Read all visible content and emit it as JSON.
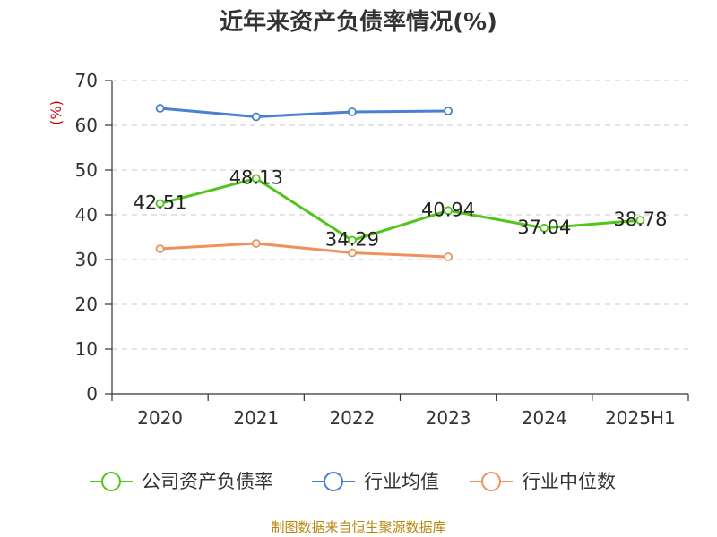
{
  "chart_data": {
    "type": "line",
    "title": "近年来资产负债率情况(%)",
    "ylabel": "(%)",
    "xlabel": "",
    "ylim": [
      0,
      70
    ],
    "yticks": [
      0,
      10,
      20,
      30,
      40,
      50,
      60,
      70
    ],
    "grid": true,
    "legend_position": "bottom",
    "categories": [
      "2020",
      "2021",
      "2022",
      "2023",
      "2024",
      "2025H1"
    ],
    "series": [
      {
        "name": "公司资产负债率",
        "color": "#52c41a",
        "values": [
          42.51,
          48.13,
          34.29,
          40.94,
          37.04,
          38.78
        ],
        "labels": [
          "42.51",
          "48.13",
          "34.29",
          "40.94",
          "37.04",
          "38.78"
        ],
        "show_labels": true
      },
      {
        "name": "行业均值",
        "color": "#4a7fd6",
        "values": [
          63.8,
          61.9,
          63.0,
          63.2,
          null,
          null
        ],
        "show_labels": false
      },
      {
        "name": "行业中位数",
        "color": "#f0915c",
        "values": [
          32.4,
          33.6,
          31.5,
          30.6,
          null,
          null
        ],
        "show_labels": false
      }
    ],
    "source": "制图数据来自恒生聚源数据库"
  }
}
